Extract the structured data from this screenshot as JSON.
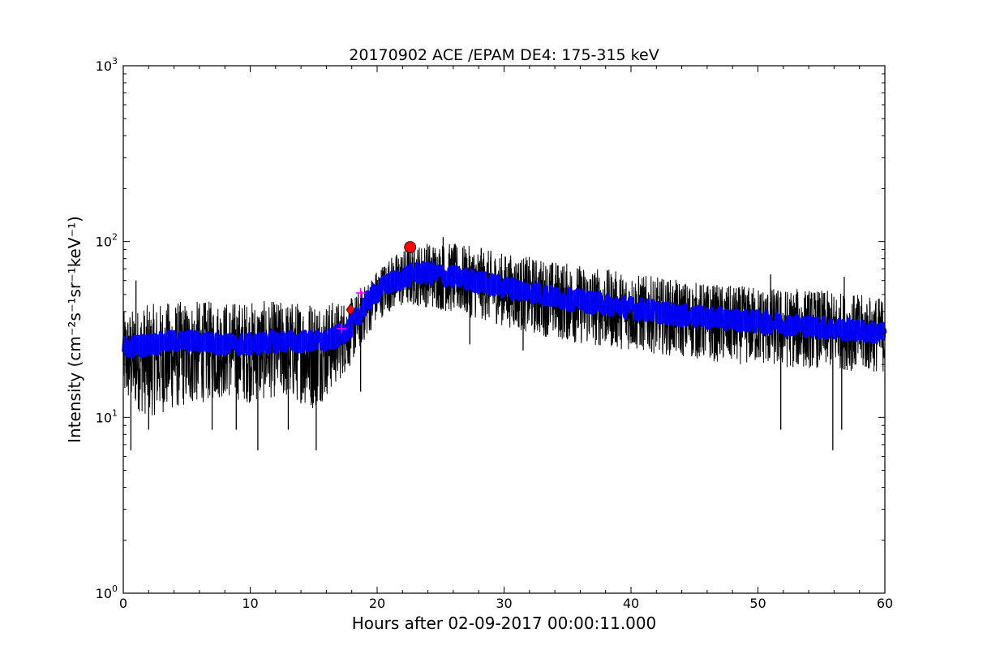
{
  "chart_data": {
    "type": "line",
    "title": "20170902 ACE /EPAM DE4: 175-315 keV",
    "xlabel": "Hours after 02-09-2017 00:00:11.000",
    "ylabel": "Intensity (cm⁻²s⁻¹sr⁻¹keV⁻¹)",
    "xlim": [
      0,
      60
    ],
    "ylim": [
      1,
      1000
    ],
    "yscale": "log",
    "grid": false,
    "x_ticks": [
      "0",
      "10",
      "20",
      "30",
      "40",
      "50",
      "60"
    ],
    "y_ticks": [
      {
        "base": "10",
        "exp": "0",
        "value": 1
      },
      {
        "base": "10",
        "exp": "1",
        "value": 10
      },
      {
        "base": "10",
        "exp": "2",
        "value": 100
      },
      {
        "base": "10",
        "exp": "3",
        "value": 1000
      }
    ],
    "series": [
      {
        "style": "raw",
        "color": "#000000",
        "envelope": {
          "x": [
            0,
            2,
            4,
            6,
            8,
            10,
            12,
            14,
            15,
            16,
            17,
            18,
            19,
            20,
            21,
            22,
            23,
            24,
            26,
            28,
            30,
            32,
            34,
            36,
            38,
            40,
            42,
            44,
            46,
            48,
            50,
            52,
            54,
            56,
            58,
            60
          ],
          "upper": [
            40,
            44,
            46,
            46,
            46,
            46,
            46,
            46,
            48,
            46,
            46,
            48,
            56,
            70,
            82,
            90,
            95,
            100,
            98,
            92,
            86,
            82,
            78,
            74,
            70,
            66,
            63,
            60,
            58,
            56,
            56,
            54,
            54,
            52,
            50,
            48
          ],
          "lower": [
            12,
            10,
            11,
            12,
            13,
            12,
            13,
            12,
            11,
            13,
            16,
            20,
            27,
            35,
            40,
            42,
            43,
            42,
            39,
            36,
            33,
            30,
            28,
            26,
            25,
            24,
            23,
            22,
            21,
            20,
            20,
            19,
            19,
            19,
            18,
            18
          ]
        },
        "spikes": [
          {
            "x": 0.6,
            "y": 6.5
          },
          {
            "x": 10.6,
            "y": 6.5
          },
          {
            "x": 15.2,
            "y": 6.5
          },
          {
            "x": 55.9,
            "y": 6.5
          },
          {
            "x": 2.0,
            "y": 8.5
          },
          {
            "x": 7.0,
            "y": 8.5
          },
          {
            "x": 8.9,
            "y": 8.5
          },
          {
            "x": 13.0,
            "y": 8.5
          },
          {
            "x": 51.8,
            "y": 8.5
          },
          {
            "x": 56.6,
            "y": 8.5
          },
          {
            "x": 1.0,
            "y": 60
          },
          {
            "x": 25.2,
            "y": 106
          },
          {
            "x": 28.2,
            "y": 92
          },
          {
            "x": 51.0,
            "y": 65
          },
          {
            "x": 56.8,
            "y": 63
          },
          {
            "x": 18.7,
            "y": 14
          },
          {
            "x": 27.3,
            "y": 26
          },
          {
            "x": 31.5,
            "y": 24
          }
        ]
      },
      {
        "style": "smoothed",
        "color": "#0000ff",
        "x": [
          0,
          2,
          4,
          6,
          8,
          10,
          12,
          14,
          16,
          17,
          18,
          19,
          20,
          21,
          22,
          23,
          24,
          26,
          28,
          30,
          32,
          34,
          36,
          38,
          40,
          42,
          44,
          46,
          48,
          50,
          52,
          54,
          56,
          58,
          60
        ],
        "values": [
          25,
          26,
          27,
          27,
          26,
          26,
          27,
          27,
          27,
          29,
          33,
          43,
          52,
          58,
          62,
          66,
          66,
          63,
          59,
          55,
          52,
          48,
          46,
          44,
          42,
          40,
          38,
          37,
          36,
          35,
          34,
          33,
          32,
          31,
          30
        ]
      }
    ],
    "markers": [
      {
        "shape": "plus",
        "color": "#ff00ff",
        "x": 17.2,
        "y": 32
      },
      {
        "shape": "diamond",
        "color": "#ff0000",
        "x": 17.9,
        "y": 41
      },
      {
        "shape": "plus",
        "color": "#ff00ff",
        "x": 18.7,
        "y": 51
      },
      {
        "shape": "circle",
        "color": "#ff0000",
        "x": 22.6,
        "y": 93
      }
    ]
  }
}
